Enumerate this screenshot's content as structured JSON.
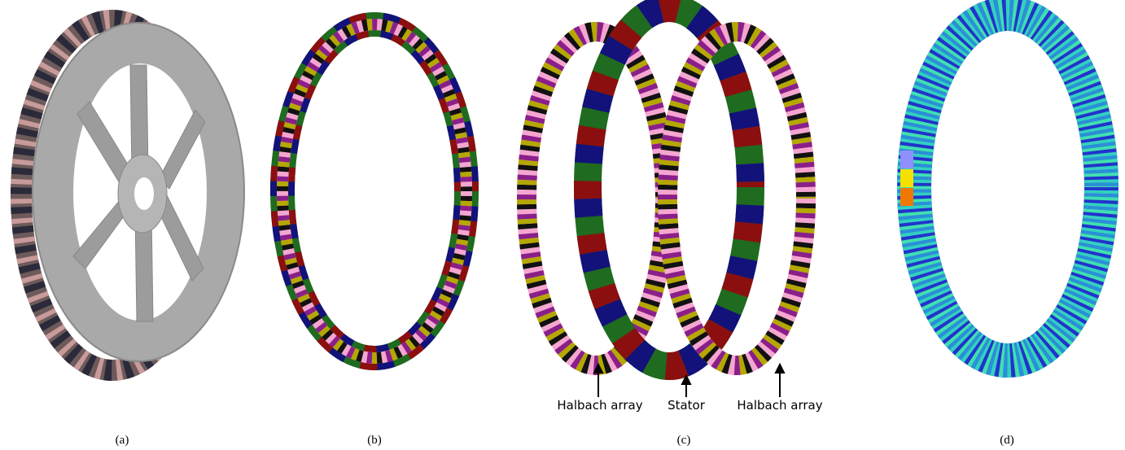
{
  "panels": [
    {
      "label": "(a)"
    },
    {
      "label": "(b)"
    },
    {
      "label": "(c)"
    },
    {
      "label": "(d)"
    }
  ],
  "annotations": [
    {
      "text": "Halbach array"
    },
    {
      "text": "Stator"
    },
    {
      "text": "Halbach array"
    }
  ]
}
